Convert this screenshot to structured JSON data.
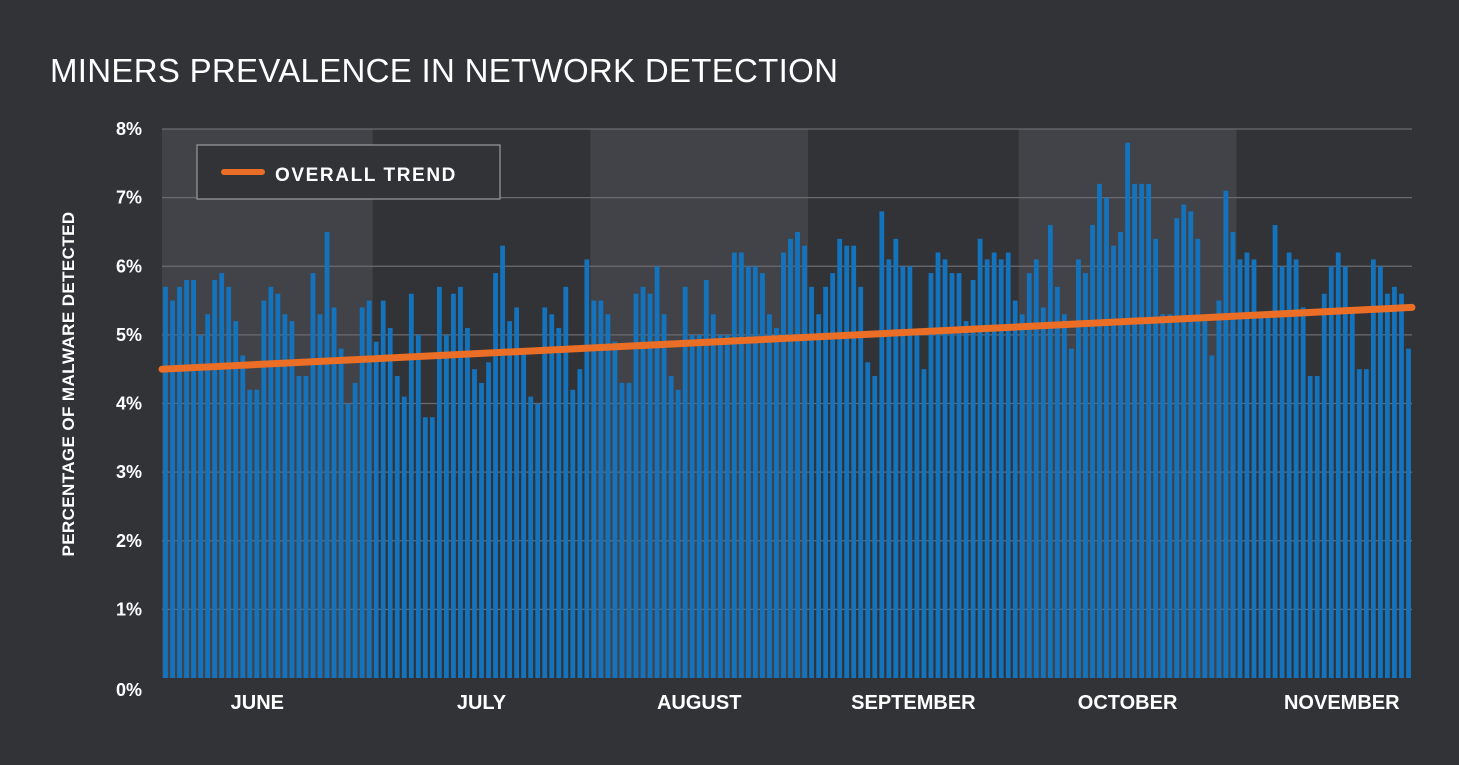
{
  "chart_data": {
    "type": "bar",
    "title": "MINERS PREVALENCE IN NETWORK DETECTION",
    "xlabel": "",
    "ylabel": "PERCENTAGE OF MALWARE DETECTED",
    "ylim": [
      0,
      8
    ],
    "yticks": [
      "0%",
      "1%",
      "2%",
      "3%",
      "4%",
      "5%",
      "6%",
      "7%",
      "8%"
    ],
    "grid": true,
    "months": [
      {
        "label": "JUNE",
        "days": 30
      },
      {
        "label": "JULY",
        "days": 31
      },
      {
        "label": "AUGUST",
        "days": 31
      },
      {
        "label": "SEPTEMBER",
        "days": 30
      },
      {
        "label": "OCTOBER",
        "days": 31
      },
      {
        "label": "NOVEMBER",
        "days": 30
      }
    ],
    "values": [
      5.7,
      5.5,
      5.7,
      5.8,
      5.8,
      5.0,
      5.3,
      5.8,
      5.9,
      5.7,
      5.2,
      4.7,
      4.2,
      4.2,
      5.5,
      5.7,
      5.6,
      5.3,
      5.2,
      4.4,
      4.4,
      5.9,
      5.3,
      6.5,
      5.4,
      4.8,
      4.0,
      4.3,
      5.4,
      5.5,
      4.9,
      5.5,
      5.1,
      4.4,
      4.1,
      5.6,
      5.0,
      3.8,
      3.8,
      5.7,
      5.0,
      5.6,
      5.7,
      5.1,
      4.5,
      4.3,
      4.6,
      5.9,
      6.3,
      5.2,
      5.4,
      4.8,
      4.1,
      4.0,
      5.4,
      5.3,
      5.1,
      5.7,
      4.2,
      4.5,
      6.1,
      5.5,
      5.5,
      5.3,
      4.9,
      4.3,
      4.3,
      5.6,
      5.7,
      5.6,
      6.0,
      5.3,
      4.4,
      4.2,
      5.7,
      5.0,
      5.0,
      5.8,
      5.3,
      5.0,
      5.0,
      6.2,
      6.2,
      6.0,
      6.0,
      5.9,
      5.3,
      5.1,
      6.2,
      6.4,
      6.5,
      6.3,
      5.7,
      5.3,
      5.7,
      5.9,
      6.4,
      6.3,
      6.3,
      5.7,
      4.6,
      4.4,
      6.8,
      6.1,
      6.4,
      6.0,
      6.0,
      5.0,
      4.5,
      5.9,
      6.2,
      6.1,
      5.9,
      5.9,
      5.2,
      5.8,
      6.4,
      6.1,
      6.2,
      6.1,
      6.2,
      5.5,
      5.3,
      5.9,
      6.1,
      5.4,
      6.6,
      5.7,
      5.3,
      4.8,
      6.1,
      5.9,
      6.6,
      7.2,
      7.0,
      6.3,
      6.5,
      7.8,
      7.2,
      7.2,
      7.2,
      6.4,
      5.3,
      5.3,
      6.7,
      6.9,
      6.8,
      6.4,
      5.2,
      4.7,
      5.5,
      7.1,
      6.5,
      6.1,
      6.2,
      6.1,
      5.3,
      5.3,
      6.6,
      6.0,
      6.2,
      6.1,
      5.4,
      4.4,
      4.4,
      5.6,
      6.0,
      6.2,
      6.0,
      5.4,
      4.5,
      4.5,
      6.1,
      6.0,
      5.6,
      5.7,
      5.6,
      4.8
    ],
    "trend": {
      "name": "OVERALL TREND",
      "start": 4.5,
      "end": 5.4
    },
    "legend_position": "top-left",
    "colors": {
      "background": "#323337",
      "band": "#424349",
      "bar": "#1473bd",
      "trend": "#ea6e25",
      "grid": "#6a6b70"
    }
  }
}
